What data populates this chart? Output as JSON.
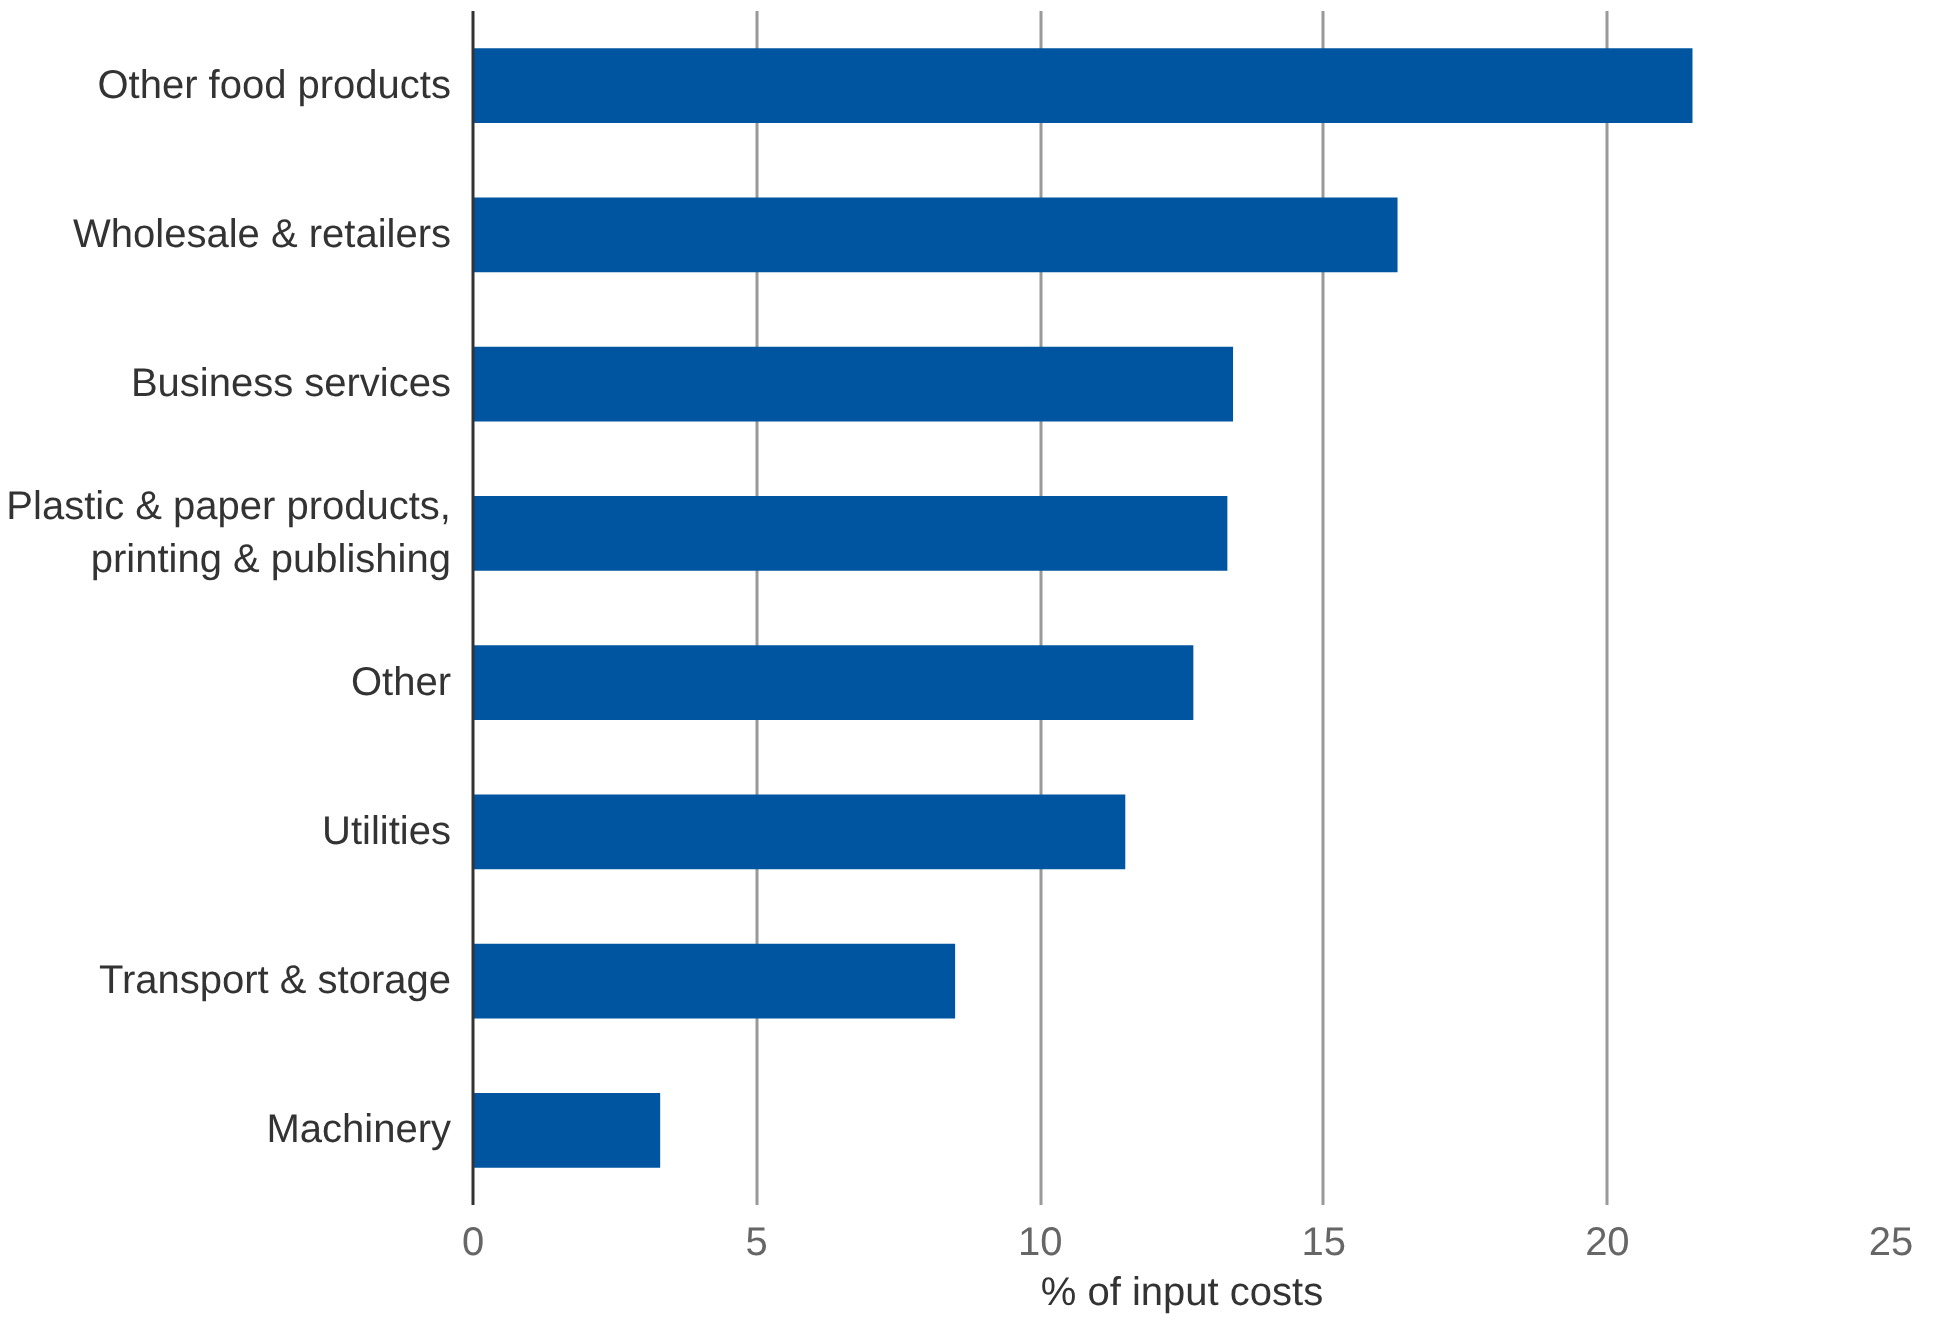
{
  "chart_data": {
    "type": "bar",
    "orientation": "horizontal",
    "xlabel": "% of input costs",
    "categories": [
      "Other food products",
      "Wholesale & retailers",
      "Business services",
      "Plastic & paper products,\nprinting & publishing",
      "Other",
      "Utilities",
      "Transport & storage",
      "Machinery"
    ],
    "values": [
      21.5,
      16.3,
      13.4,
      13.3,
      12.7,
      11.5,
      8.5,
      3.3
    ],
    "color": "#0055a0",
    "xlim": [
      0,
      25
    ],
    "xticks": [
      0,
      5,
      10,
      15,
      20,
      25
    ],
    "grid": "x"
  }
}
